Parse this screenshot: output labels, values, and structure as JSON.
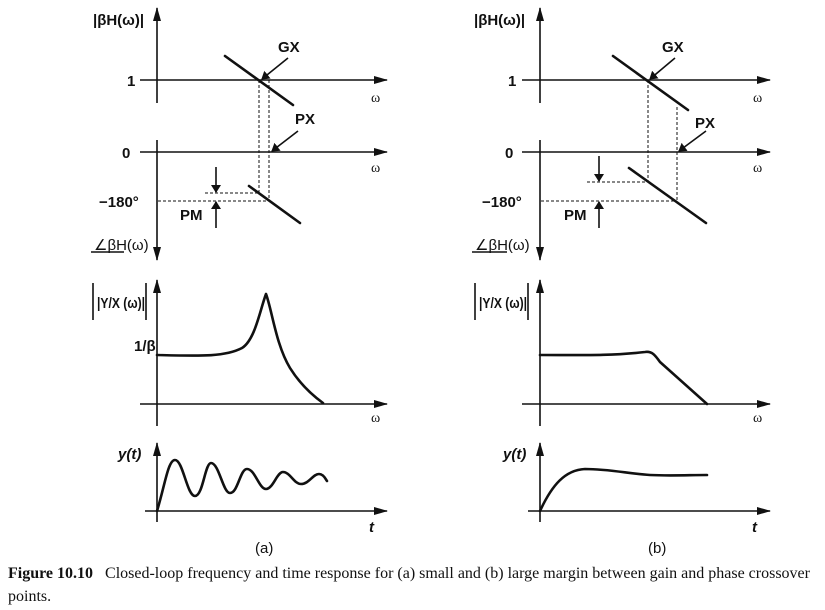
{
  "panels": [
    {
      "id": "a",
      "sublabel": "(a)",
      "gain_axis_label": "|βH(ω)|",
      "phase_axis_label": "∠βH(ω)",
      "gain_tick": "1",
      "phase_tick_zero": "0",
      "phase_tick_180": "−180°",
      "gx_label": "GX",
      "px_label": "PX",
      "pm_label": "PM",
      "omega": "ω",
      "closed_loop_label": "|Y/X (ω)|",
      "closed_loop_tick": "1/β",
      "time_label": "y(t)",
      "t_label": "t"
    },
    {
      "id": "b",
      "sublabel": "(b)",
      "gain_axis_label": "|βH(ω)|",
      "phase_axis_label": "∠βH(ω)",
      "gain_tick": "1",
      "phase_tick_zero": "0",
      "phase_tick_180": "−180°",
      "gx_label": "GX",
      "px_label": "PX",
      "pm_label": "PM",
      "omega": "ω",
      "closed_loop_label": "|Y/X (ω)|",
      "time_label": "y(t)",
      "t_label": "t"
    }
  ],
  "caption": {
    "number": "Figure 10.10",
    "text": "Closed-loop frequency and time response for (a) small and (b) large margin between gain and phase crossover points."
  }
}
